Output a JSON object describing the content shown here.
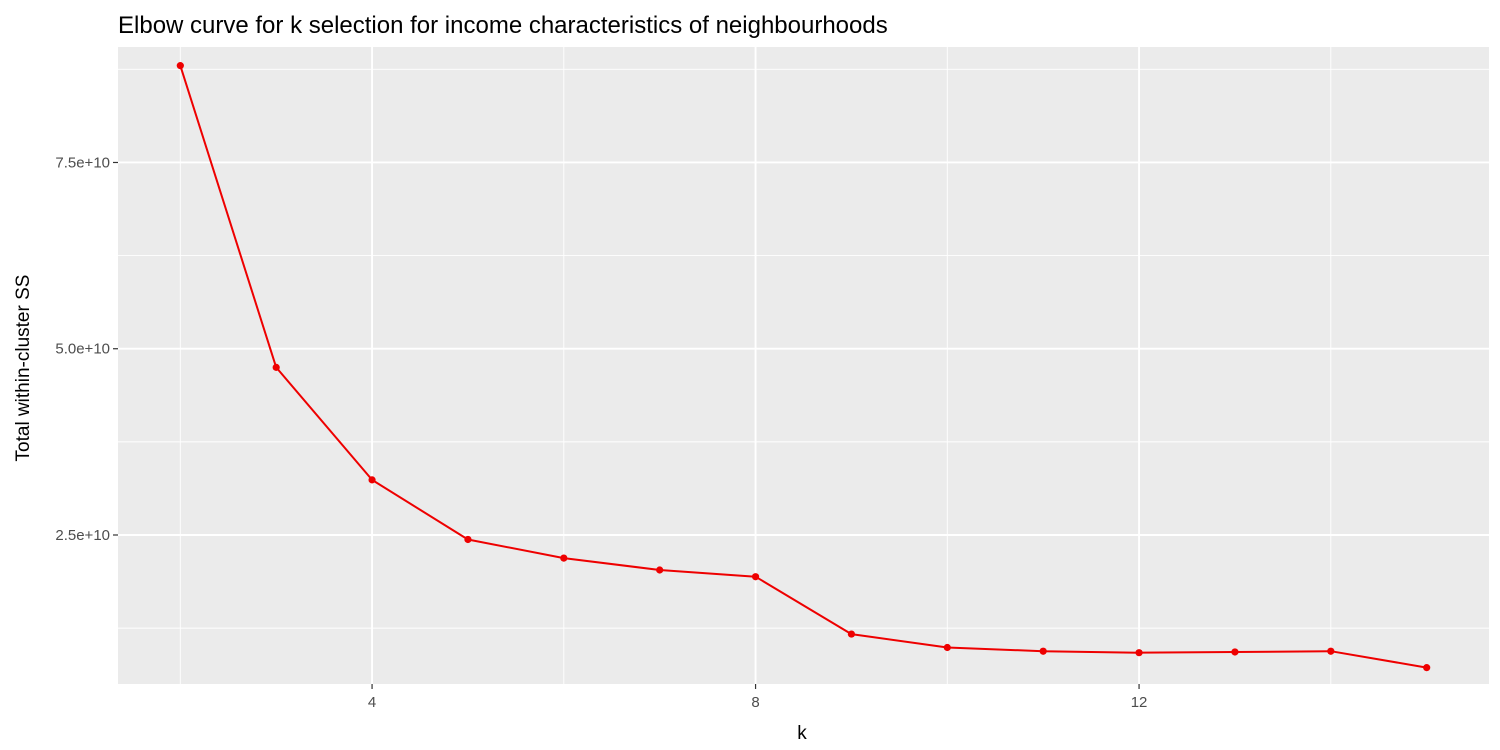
{
  "chart_data": {
    "type": "line",
    "title": "Elbow curve for k selection for income characteristics of neighbourhoods",
    "xlabel": "k",
    "ylabel": "Total within-cluster SS",
    "xlim": [
      1.35,
      15.65
    ],
    "ylim": [
      5000000000,
      90500000000
    ],
    "x_ticks": [
      4,
      8,
      12
    ],
    "x_tick_labels": [
      "4",
      "8",
      "12"
    ],
    "y_ticks": [
      25000000000,
      50000000000,
      75000000000
    ],
    "y_tick_labels": [
      "2.5e+10",
      "5.0e+10",
      "7.5e+10"
    ],
    "grid": true,
    "legend": "none",
    "series": [
      {
        "x": [
          2,
          3,
          4,
          5,
          6,
          7,
          8,
          9,
          10,
          11,
          12,
          13,
          14,
          15
        ],
        "values": [
          88000000000,
          47500000000,
          32400000000,
          24400000000,
          21900000000,
          20300000000,
          19400000000,
          11700000000,
          9900000000,
          9400000000,
          9200000000,
          9300000000,
          9400000000,
          7200000000
        ]
      }
    ],
    "colors": {
      "line": "#ee0000",
      "panel": "#ebebeb",
      "grid": "#ffffff",
      "tick_label": "#4d4d4d",
      "tick_mark": "#333333"
    }
  }
}
